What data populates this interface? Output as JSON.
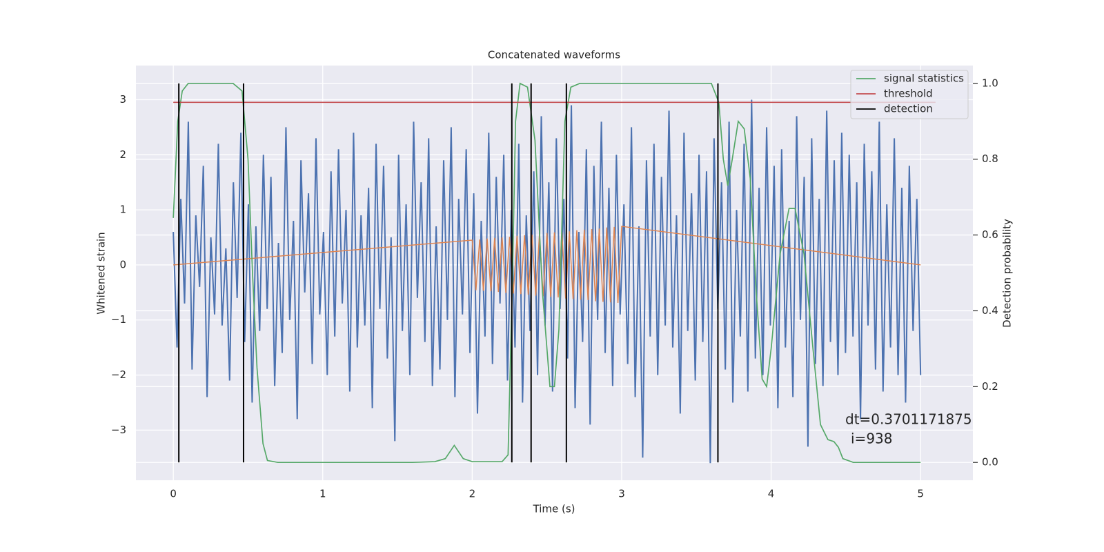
{
  "chart_data": {
    "type": "line",
    "title": "Concatenated waveforms",
    "x_label": "Time (s)",
    "y_label": "Whitened strain",
    "y2_label": "Detection probability",
    "xlim": [
      -0.25,
      5.35
    ],
    "ylim": [
      -3.91,
      3.62
    ],
    "y2lim": [
      -0.047,
      1.047
    ],
    "xticks": [
      0,
      1,
      2,
      3,
      4,
      5
    ],
    "yticks": [
      {
        "value": -3,
        "label": "−3"
      },
      {
        "value": -2,
        "label": "−2"
      },
      {
        "value": -1,
        "label": "−1"
      },
      0,
      1,
      2,
      3
    ],
    "y2ticks": [
      {
        "value": 0,
        "label": "0.0"
      },
      {
        "value": 0.2,
        "label": "0.2"
      },
      {
        "value": 0.4,
        "label": "0.4"
      },
      {
        "value": 0.6,
        "label": "0.6"
      },
      {
        "value": 0.8,
        "label": "0.8"
      },
      {
        "value": 1.0,
        "label": "1.0"
      }
    ],
    "grid": true,
    "legend": "upper right",
    "strain": {
      "color": "#4c72b0",
      "x_range": [
        0,
        5
      ],
      "values": [
        0.6,
        -1.5,
        1.2,
        -0.7,
        2.6,
        -1.9,
        0.9,
        -0.4,
        1.8,
        -2.4,
        0.5,
        -0.9,
        2.2,
        -1.1,
        0.3,
        -2.1,
        1.5,
        -0.6,
        2.4,
        -1.4,
        1.1,
        -2.5,
        0.7,
        -1.2,
        2.0,
        -0.8,
        1.6,
        -2.2,
        0.4,
        -1.6,
        2.5,
        -1.0,
        0.8,
        -2.8,
        1.9,
        -0.5,
        1.3,
        -1.8,
        2.3,
        -0.9,
        0.6,
        -2.0,
        1.7,
        -1.3,
        2.1,
        -0.7,
        1.0,
        -2.3,
        2.4,
        -1.5,
        0.9,
        -1.1,
        1.4,
        -2.6,
        2.2,
        -0.8,
        1.8,
        -1.7,
        0.5,
        -3.2,
        2.0,
        -1.2,
        1.1,
        -2.0,
        2.6,
        -0.6,
        1.5,
        -1.4,
        2.3,
        -2.2,
        0.7,
        -1.9,
        1.9,
        -1.0,
        2.5,
        -2.4,
        1.2,
        -0.9,
        2.1,
        -1.6,
        1.3,
        -2.7,
        0.8,
        -1.3,
        2.4,
        -1.8,
        1.6,
        -0.7,
        2.0,
        -2.1,
        1.0,
        -1.5,
        2.2,
        -2.5,
        0.9,
        -1.2,
        1.7,
        -2.0,
        2.7,
        -1.1,
        1.5,
        -2.3,
        2.3,
        -0.8,
        1.2,
        -1.7,
        2.9,
        -2.6,
        0.6,
        -1.4,
        2.1,
        -2.9,
        1.8,
        -1.0,
        2.6,
        -1.6,
        1.4,
        -2.2,
        2.0,
        -0.9,
        1.1,
        -1.8,
        2.5,
        -2.4,
        0.7,
        -3.5,
        1.9,
        -1.3,
        2.2,
        -2.0,
        1.6,
        -1.1,
        2.8,
        -1.5,
        0.9,
        -2.7,
        2.4,
        -1.2,
        1.3,
        -2.1,
        2.0,
        -1.4,
        1.7,
        -3.6,
        2.3,
        -0.8,
        1.5,
        -1.9,
        2.6,
        -2.5,
        1.0,
        -1.3,
        2.2,
        -2.3,
        3.0,
        -1.7,
        1.4,
        -2.0,
        2.5,
        -1.1,
        1.8,
        -2.6,
        2.1,
        -1.5,
        0.8,
        -2.4,
        2.7,
        -1.0,
        1.6,
        -3.3,
        2.3,
        -1.8,
        1.2,
        -2.2,
        2.8,
        -1.4,
        1.9,
        -2.0,
        2.4,
        -1.6,
        2.0,
        -1.3,
        1.5,
        -2.8,
        2.2,
        -1.1,
        1.7,
        -1.9,
        2.6,
        -2.3,
        1.1,
        -1.5,
        2.3,
        -2.0,
        1.4,
        -2.5,
        1.8,
        -1.2,
        1.2,
        -2.0
      ]
    },
    "waveform": {
      "color": "#dd8452",
      "x": [
        0,
        2,
        2.025,
        2.05,
        2.075,
        2.1,
        2.125,
        2.15,
        2.175,
        2.2,
        2.225,
        2.25,
        2.275,
        2.3,
        2.325,
        2.35,
        2.375,
        2.4,
        2.425,
        2.45,
        2.475,
        2.5,
        2.525,
        2.55,
        2.575,
        2.6,
        2.625,
        2.65,
        2.675,
        2.7,
        2.725,
        2.75,
        2.775,
        2.8,
        2.825,
        2.85,
        2.875,
        2.9,
        2.925,
        2.95,
        2.975,
        3,
        5
      ],
      "values": [
        0,
        0.45,
        -0.46,
        0.46,
        -0.47,
        0.48,
        -0.48,
        0.49,
        -0.49,
        0.5,
        -0.51,
        0.51,
        -0.52,
        0.53,
        -0.53,
        0.54,
        -0.54,
        0.55,
        -0.56,
        0.56,
        -0.57,
        0.58,
        -0.58,
        0.59,
        -0.59,
        0.6,
        -0.61,
        0.61,
        -0.62,
        0.63,
        -0.63,
        0.64,
        -0.64,
        0.65,
        -0.66,
        0.66,
        -0.67,
        0.68,
        -0.68,
        0.69,
        -0.69,
        0.7,
        0
      ]
    },
    "series": [
      {
        "name": "signal statistics",
        "color": "#55a868",
        "axis": "y2",
        "x": [
          0,
          0.03,
          0.06,
          0.1,
          0.4,
          0.46,
          0.5,
          0.53,
          0.56,
          0.6,
          0.63,
          0.7,
          1.6,
          1.75,
          1.82,
          1.88,
          1.94,
          2.0,
          2.2,
          2.24,
          2.27,
          2.29,
          2.32,
          2.37,
          2.42,
          2.47,
          2.52,
          2.55,
          2.58,
          2.62,
          2.66,
          2.72,
          3.6,
          3.65,
          3.68,
          3.71,
          3.74,
          3.78,
          3.82,
          3.86,
          3.9,
          3.94,
          3.97,
          4.0,
          4.06,
          4.12,
          4.16,
          4.22,
          4.28,
          4.33,
          4.38,
          4.42,
          4.45,
          4.48,
          4.55,
          5.0
        ],
        "values": [
          0.645,
          0.9,
          0.98,
          1.0,
          1.0,
          0.98,
          0.8,
          0.5,
          0.25,
          0.05,
          0.005,
          0,
          0,
          0.002,
          0.01,
          0.045,
          0.01,
          0.002,
          0.002,
          0.02,
          0.5,
          0.9,
          1.0,
          0.99,
          0.85,
          0.45,
          0.2,
          0.2,
          0.35,
          0.9,
          0.99,
          1.0,
          1.0,
          0.95,
          0.8,
          0.73,
          0.8,
          0.9,
          0.88,
          0.75,
          0.45,
          0.22,
          0.2,
          0.3,
          0.55,
          0.67,
          0.67,
          0.55,
          0.3,
          0.1,
          0.06,
          0.055,
          0.04,
          0.01,
          0,
          0
        ]
      },
      {
        "name": "threshold",
        "color": "#c44e52",
        "axis": "y2",
        "x": [
          0,
          5.1
        ],
        "values": [
          0.95,
          0.95
        ]
      },
      {
        "name": "detection",
        "color": "#000000",
        "axis": "y2",
        "x": [
          0.037,
          0.47,
          2.265,
          2.394,
          2.63,
          3.644
        ],
        "span": [
          0,
          1
        ]
      }
    ],
    "annotation": [
      "dt=0.3701171875",
      "i=938"
    ]
  }
}
